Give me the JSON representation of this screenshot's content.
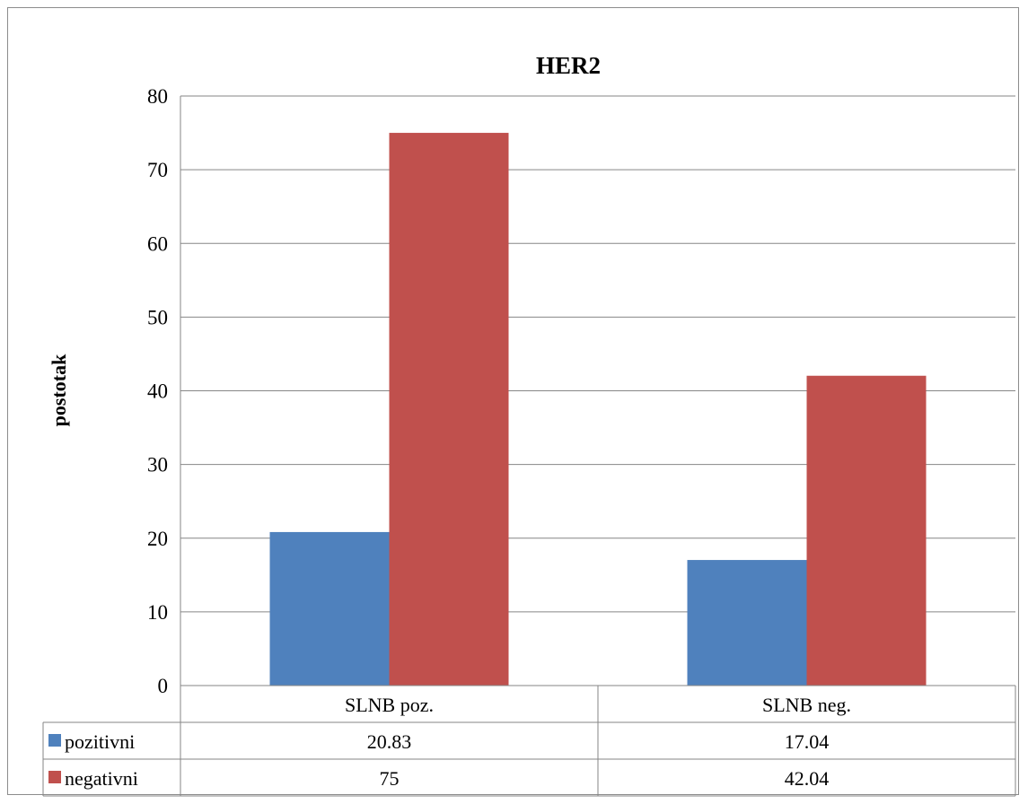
{
  "chart_data": {
    "type": "bar",
    "title": "HER2",
    "ylabel": "postotak",
    "xlabel": "",
    "categories": [
      "SLNB poz.",
      "SLNB neg."
    ],
    "series": [
      {
        "name": "pozitivni",
        "values": [
          20.83,
          17.04
        ],
        "value_labels": [
          "20.83",
          "17.04"
        ],
        "color": "#4f81bd"
      },
      {
        "name": "negativni",
        "values": [
          75,
          42.04
        ],
        "value_labels": [
          "75",
          "42.04"
        ],
        "color": "#c0504d"
      }
    ],
    "ylim": [
      0,
      80
    ],
    "yticks": [
      0,
      10,
      20,
      30,
      40,
      50,
      60,
      70,
      80
    ],
    "grid": true,
    "legend": "data-table",
    "gridline_color": "#868686"
  }
}
